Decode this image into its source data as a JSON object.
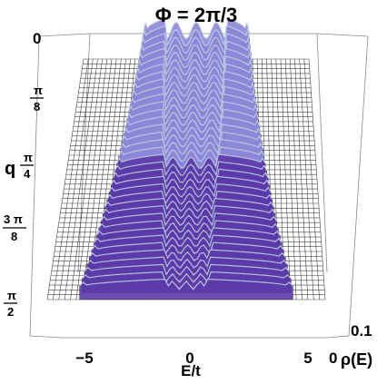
{
  "chart_data": {
    "type": "surface-3d",
    "title": "Φ = 2π/3",
    "xlabel": "E/t",
    "ylabel": "q",
    "zlabel": "ρ(E)",
    "x_ticks": [
      "−5",
      "0",
      "5"
    ],
    "x_tick_values": [
      -5,
      0,
      5
    ],
    "xlim": [
      -6,
      6
    ],
    "y_ticks": [
      {
        "label": "0",
        "value": 0
      },
      {
        "label": "π/8",
        "num": "π",
        "den": "8",
        "value": 0.3927
      },
      {
        "label": "π/4",
        "num": "π",
        "den": "4",
        "value": 0.7854
      },
      {
        "label": "3π/8",
        "num": "3 π",
        "den": "8",
        "value": 1.1781
      },
      {
        "label": "π/2",
        "num": "π",
        "den": "2",
        "value": 1.5708
      }
    ],
    "ylim": [
      0,
      1.5708
    ],
    "z_ticks": [
      "0",
      "0.1"
    ],
    "z_tick_values": [
      0,
      0.1
    ],
    "zlim": [
      0,
      0.1
    ],
    "band_edges": {
      "q_values": [
        0,
        0.3927,
        0.7854,
        1.1781,
        1.5708
      ],
      "outer_edge_E": [
        2.8,
        3.1,
        3.5,
        4.0,
        4.6
      ],
      "inner_edge_E": [
        1.6,
        1.5,
        1.3,
        1.1,
        0.9
      ],
      "peak_rho": [
        0.1,
        0.085,
        0.07,
        0.06,
        0.05
      ]
    },
    "colors": {
      "surface_dark": "#5b3aa8",
      "surface_mid": "#8d86d8",
      "surface_light": "#cfe6f2",
      "background_grid": "#000000"
    }
  }
}
